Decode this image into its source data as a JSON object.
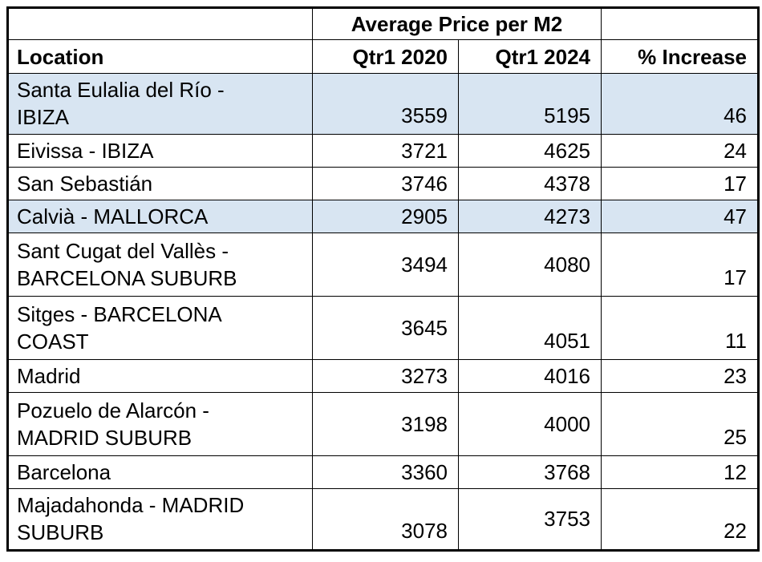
{
  "table": {
    "merged_header": "Average Price per M2",
    "col_headers": {
      "location": "Location",
      "q2020": "Qtr1 2020",
      "q2024": "Qtr1 2024",
      "increase": "% Increase"
    },
    "highlight_color": "#D8E5F2",
    "border_color": "#000000",
    "rows": [
      {
        "location": "Santa Eulalia del Río -\nIBIZA",
        "q2020": "3559",
        "q2024": "5195",
        "increase": "46"
      },
      {
        "location": "Eivissa - IBIZA",
        "q2020": "3721",
        "q2024": "4625",
        "increase": "24"
      },
      {
        "location": "San Sebastián",
        "q2020": "3746",
        "q2024": "4378",
        "increase": "17"
      },
      {
        "location": "Calvià - MALLORCA",
        "q2020": "2905",
        "q2024": "4273",
        "increase": "47"
      },
      {
        "location": "Sant Cugat del Vallès -\nBARCELONA SUBURB",
        "q2020": "3494",
        "q2024": "4080",
        "increase": "17"
      },
      {
        "location": "Sitges - BARCELONA\nCOAST",
        "q2020": "3645",
        "q2024": "4051",
        "increase": "11"
      },
      {
        "location": "Madrid",
        "q2020": "3273",
        "q2024": "4016",
        "increase": "23"
      },
      {
        "location": "Pozuelo de Alarcón -\nMADRID SUBURB",
        "q2020": "3198",
        "q2024": "4000",
        "increase": "25"
      },
      {
        "location": "Barcelona",
        "q2020": "3360",
        "q2024": "3768",
        "increase": "12"
      },
      {
        "location": "Majadahonda - MADRID\nSUBURB",
        "q2020": "3078",
        "q2024": "3753",
        "increase": "22"
      }
    ]
  },
  "chart_data": {
    "type": "table",
    "title": "Average Price per M2",
    "columns": [
      "Location",
      "Qtr1 2020",
      "Qtr1 2024",
      "% Increase"
    ],
    "rows": [
      [
        "Santa Eulalia del Río - IBIZA",
        3559,
        5195,
        46
      ],
      [
        "Eivissa - IBIZA",
        3721,
        4625,
        24
      ],
      [
        "San Sebastián",
        3746,
        4378,
        17
      ],
      [
        "Calvià - MALLORCA",
        2905,
        4273,
        47
      ],
      [
        "Sant Cugat del Vallès - BARCELONA SUBURB",
        3494,
        4080,
        17
      ],
      [
        "Sitges - BARCELONA COAST",
        3645,
        4051,
        11
      ],
      [
        "Madrid",
        3273,
        4016,
        23
      ],
      [
        "Pozuelo de Alarcón - MADRID SUBURB",
        3198,
        4000,
        25
      ],
      [
        "Barcelona",
        3360,
        3768,
        12
      ],
      [
        "Majadahonda - MADRID SUBURB",
        3078,
        3753,
        22
      ]
    ],
    "highlighted_rows": [
      0,
      3
    ]
  }
}
